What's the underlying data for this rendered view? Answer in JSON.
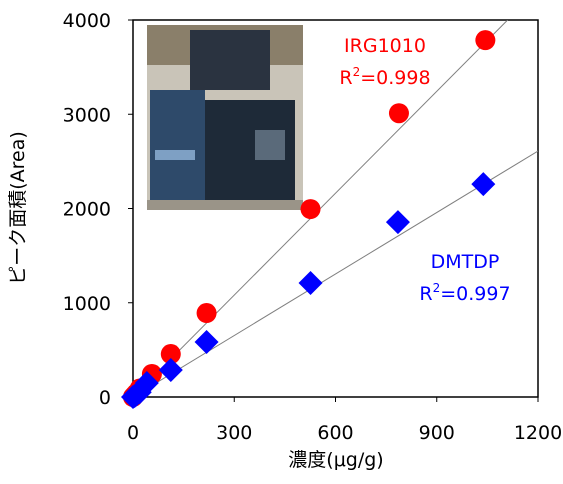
{
  "chart_data": {
    "type": "scatter",
    "x_label": "濃度(μg/g)",
    "y_label": "ピーク面積(Area)",
    "xlim": [
      0,
      1200
    ],
    "xticks": [
      0,
      300,
      600,
      900,
      1200
    ],
    "ylim": [
      0,
      4000
    ],
    "yticks": [
      0,
      1000,
      2000,
      3000,
      4000
    ],
    "series": [
      {
        "name": "IRG1010",
        "color": "#ff0000",
        "marker": "circle",
        "x": [
          0,
          5,
          10,
          20,
          56,
          112,
          218,
          526,
          788,
          1044
        ],
        "values": [
          0,
          20,
          40,
          90,
          244,
          456,
          891,
          1994,
          3011,
          3786
        ],
        "trend_x": [
          0,
          1110
        ],
        "trend_values": [
          0,
          4000
        ],
        "r2_prefix": "R",
        "r2_sup": "2",
        "r2_value": "=0.998"
      },
      {
        "name": "DMTDP",
        "color": "#0000ff",
        "marker": "diamond",
        "x": [
          0,
          5,
          10,
          20,
          41,
          112,
          218,
          526,
          785,
          1038
        ],
        "values": [
          0,
          10,
          25,
          50,
          148,
          286,
          583,
          1209,
          1856,
          2259
        ],
        "trend_x": [
          0,
          1200
        ],
        "trend_values": [
          0,
          2610
        ],
        "r2_prefix": "R",
        "r2_sup": "2",
        "r2_value": "=0.997"
      }
    ]
  }
}
